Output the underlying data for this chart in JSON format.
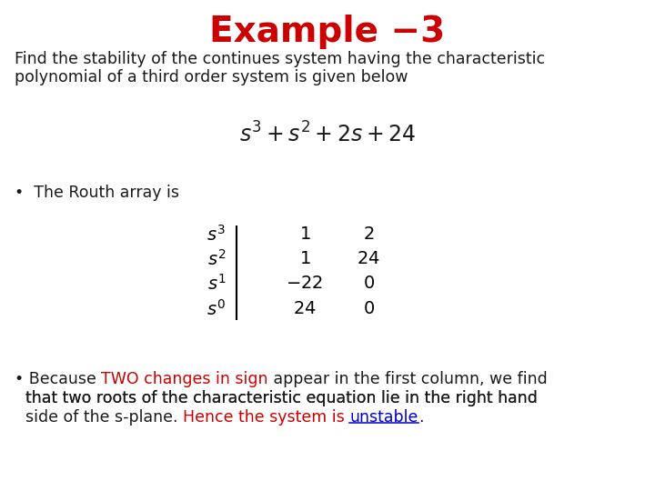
{
  "title": "Example −3",
  "title_color": "#cc0000",
  "title_fontsize": 28,
  "bg_color": "#ffffff",
  "body_color": "#1a1a1a",
  "body_fontsize": 12.5,
  "subtitle_line1": "Find the stability of the continues system having the characteristic",
  "subtitle_line2": "polynomial of a third order system is given below",
  "polynomial": "$s^3 + s^2 + 2s + 24$",
  "polynomial_fontsize": 17,
  "bullet1": "•  The Routh array is",
  "routh_labels": [
    "$s^3$",
    "$s^2$",
    "$s^1$",
    "$s^0$"
  ],
  "routh_col1": [
    "$1$",
    "$1$",
    "$-22$",
    "$24$"
  ],
  "routh_col2": [
    "$2$",
    "$24$",
    "$0$",
    "$0$"
  ],
  "red_color": "#cc0000",
  "blue_color": "#0000cc",
  "routh_fontsize": 14,
  "routh_label_fontsize": 14
}
